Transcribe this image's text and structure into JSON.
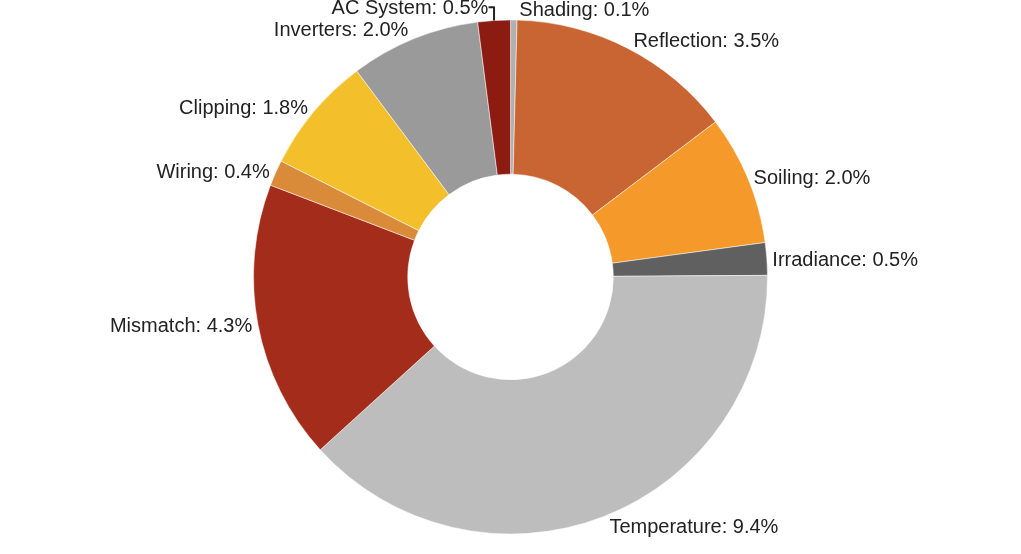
{
  "chart_data": {
    "type": "donut",
    "legend": false,
    "categories": [
      "Shading",
      "Reflection",
      "Soiling",
      "Irradiance",
      "Temperature",
      "Mismatch",
      "Wiring",
      "Clipping",
      "Inverters",
      "AC System"
    ],
    "values": [
      0.1,
      3.5,
      2.0,
      0.5,
      9.4,
      4.3,
      0.4,
      1.8,
      2.0,
      0.5
    ],
    "value_labels": [
      "0.1%",
      "3.5%",
      "2.0%",
      "0.5%",
      "9.4%",
      "4.3%",
      "0.4%",
      "1.8%",
      "2.0%",
      "0.5%"
    ],
    "colors": [
      "#b0b0b0",
      "#c96532",
      "#f59a2a",
      "#606060",
      "#bdbdbd",
      "#a32d1a",
      "#d98b3a",
      "#f3c02c",
      "#9a9a9a",
      "#8c1c12"
    ]
  }
}
